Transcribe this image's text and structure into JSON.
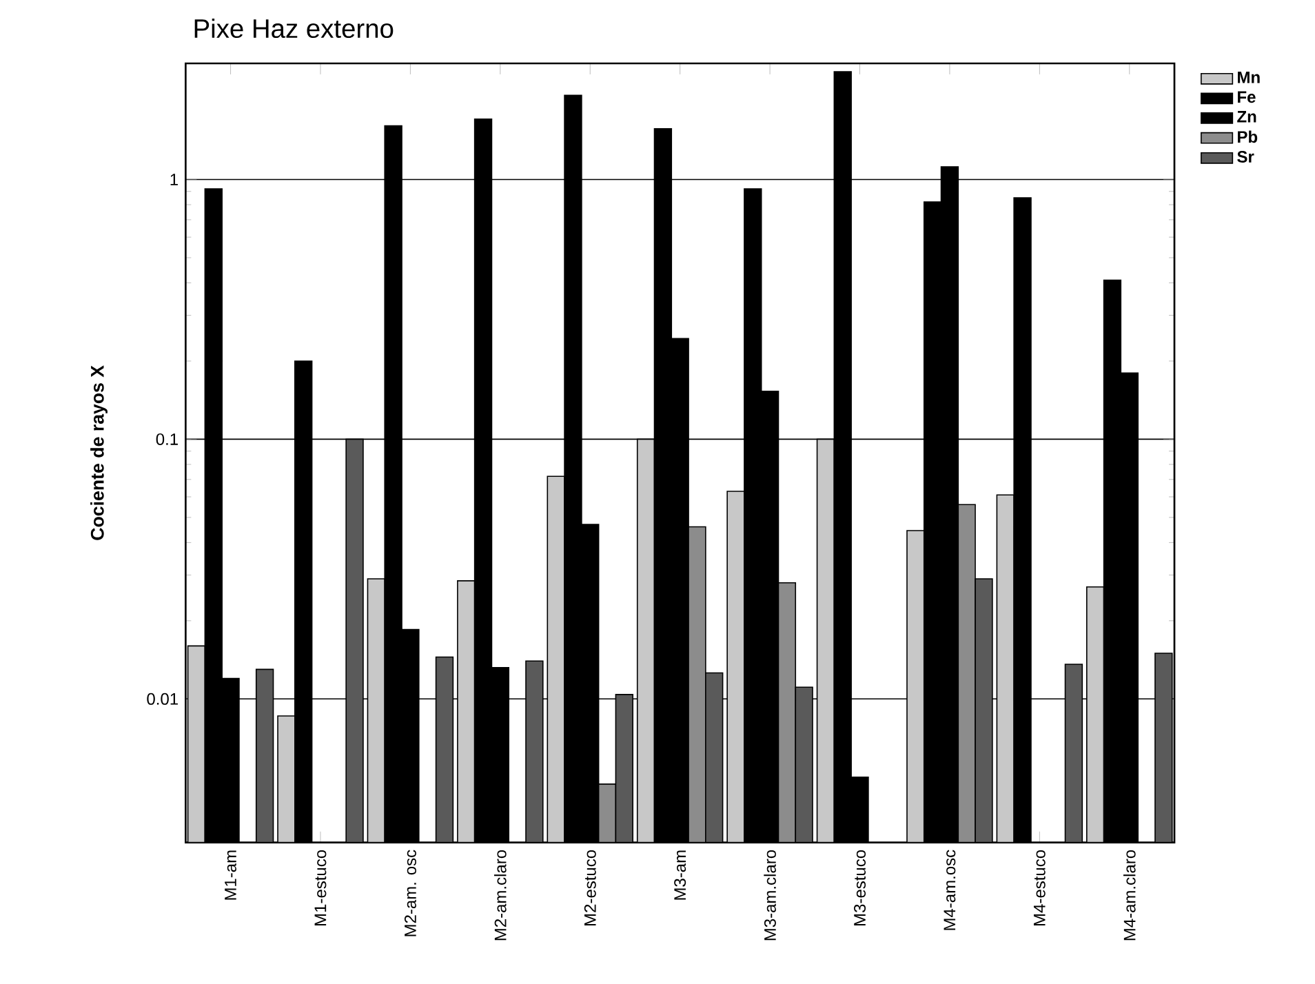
{
  "chart_data": {
    "type": "bar",
    "title": "Pixe Haz externo",
    "ylabel": "Cociente de rayos X",
    "categories": [
      "M1-am",
      "M1-estuco",
      "M2-am. osc",
      "M2-am.claro",
      "M2-estuco",
      "M3-am",
      "M3-am.claro",
      "M3-estuco",
      "M4-am.osc",
      "M4-estuco",
      "M4-am.claro"
    ],
    "series": [
      {
        "name": "Mn",
        "color": "#c8c8c8",
        "values": [
          0.016,
          0.0086,
          0.029,
          0.0285,
          0.072,
          0.1,
          0.063,
          0.1,
          0.0445,
          0.061,
          0.027
        ]
      },
      {
        "name": "Fe",
        "color": "#000000",
        "values": [
          0.92,
          0.2,
          1.61,
          1.71,
          2.11,
          1.57,
          0.92,
          2.6,
          0.82,
          0.85,
          0.41
        ]
      },
      {
        "name": "Zn",
        "color": "#000000",
        "values": [
          0.012,
          null,
          0.0185,
          0.0132,
          0.047,
          0.244,
          0.153,
          0.005,
          1.12,
          null,
          0.18
        ]
      },
      {
        "name": "Pb",
        "color": "#8c8c8c",
        "values": [
          null,
          null,
          null,
          null,
          0.0047,
          0.046,
          0.028,
          null,
          0.056,
          null,
          null
        ]
      },
      {
        "name": "Sr",
        "color": "#5a5a5a",
        "values": [
          0.013,
          0.1,
          0.0145,
          0.014,
          0.0104,
          0.0126,
          0.0111,
          null,
          0.029,
          0.0136,
          0.015
        ]
      }
    ],
    "log": true,
    "ylim": [
      0.0028,
      2.8
    ],
    "yticks": [
      0.01,
      0.1,
      1
    ],
    "grid": "y",
    "legend": "top right"
  }
}
